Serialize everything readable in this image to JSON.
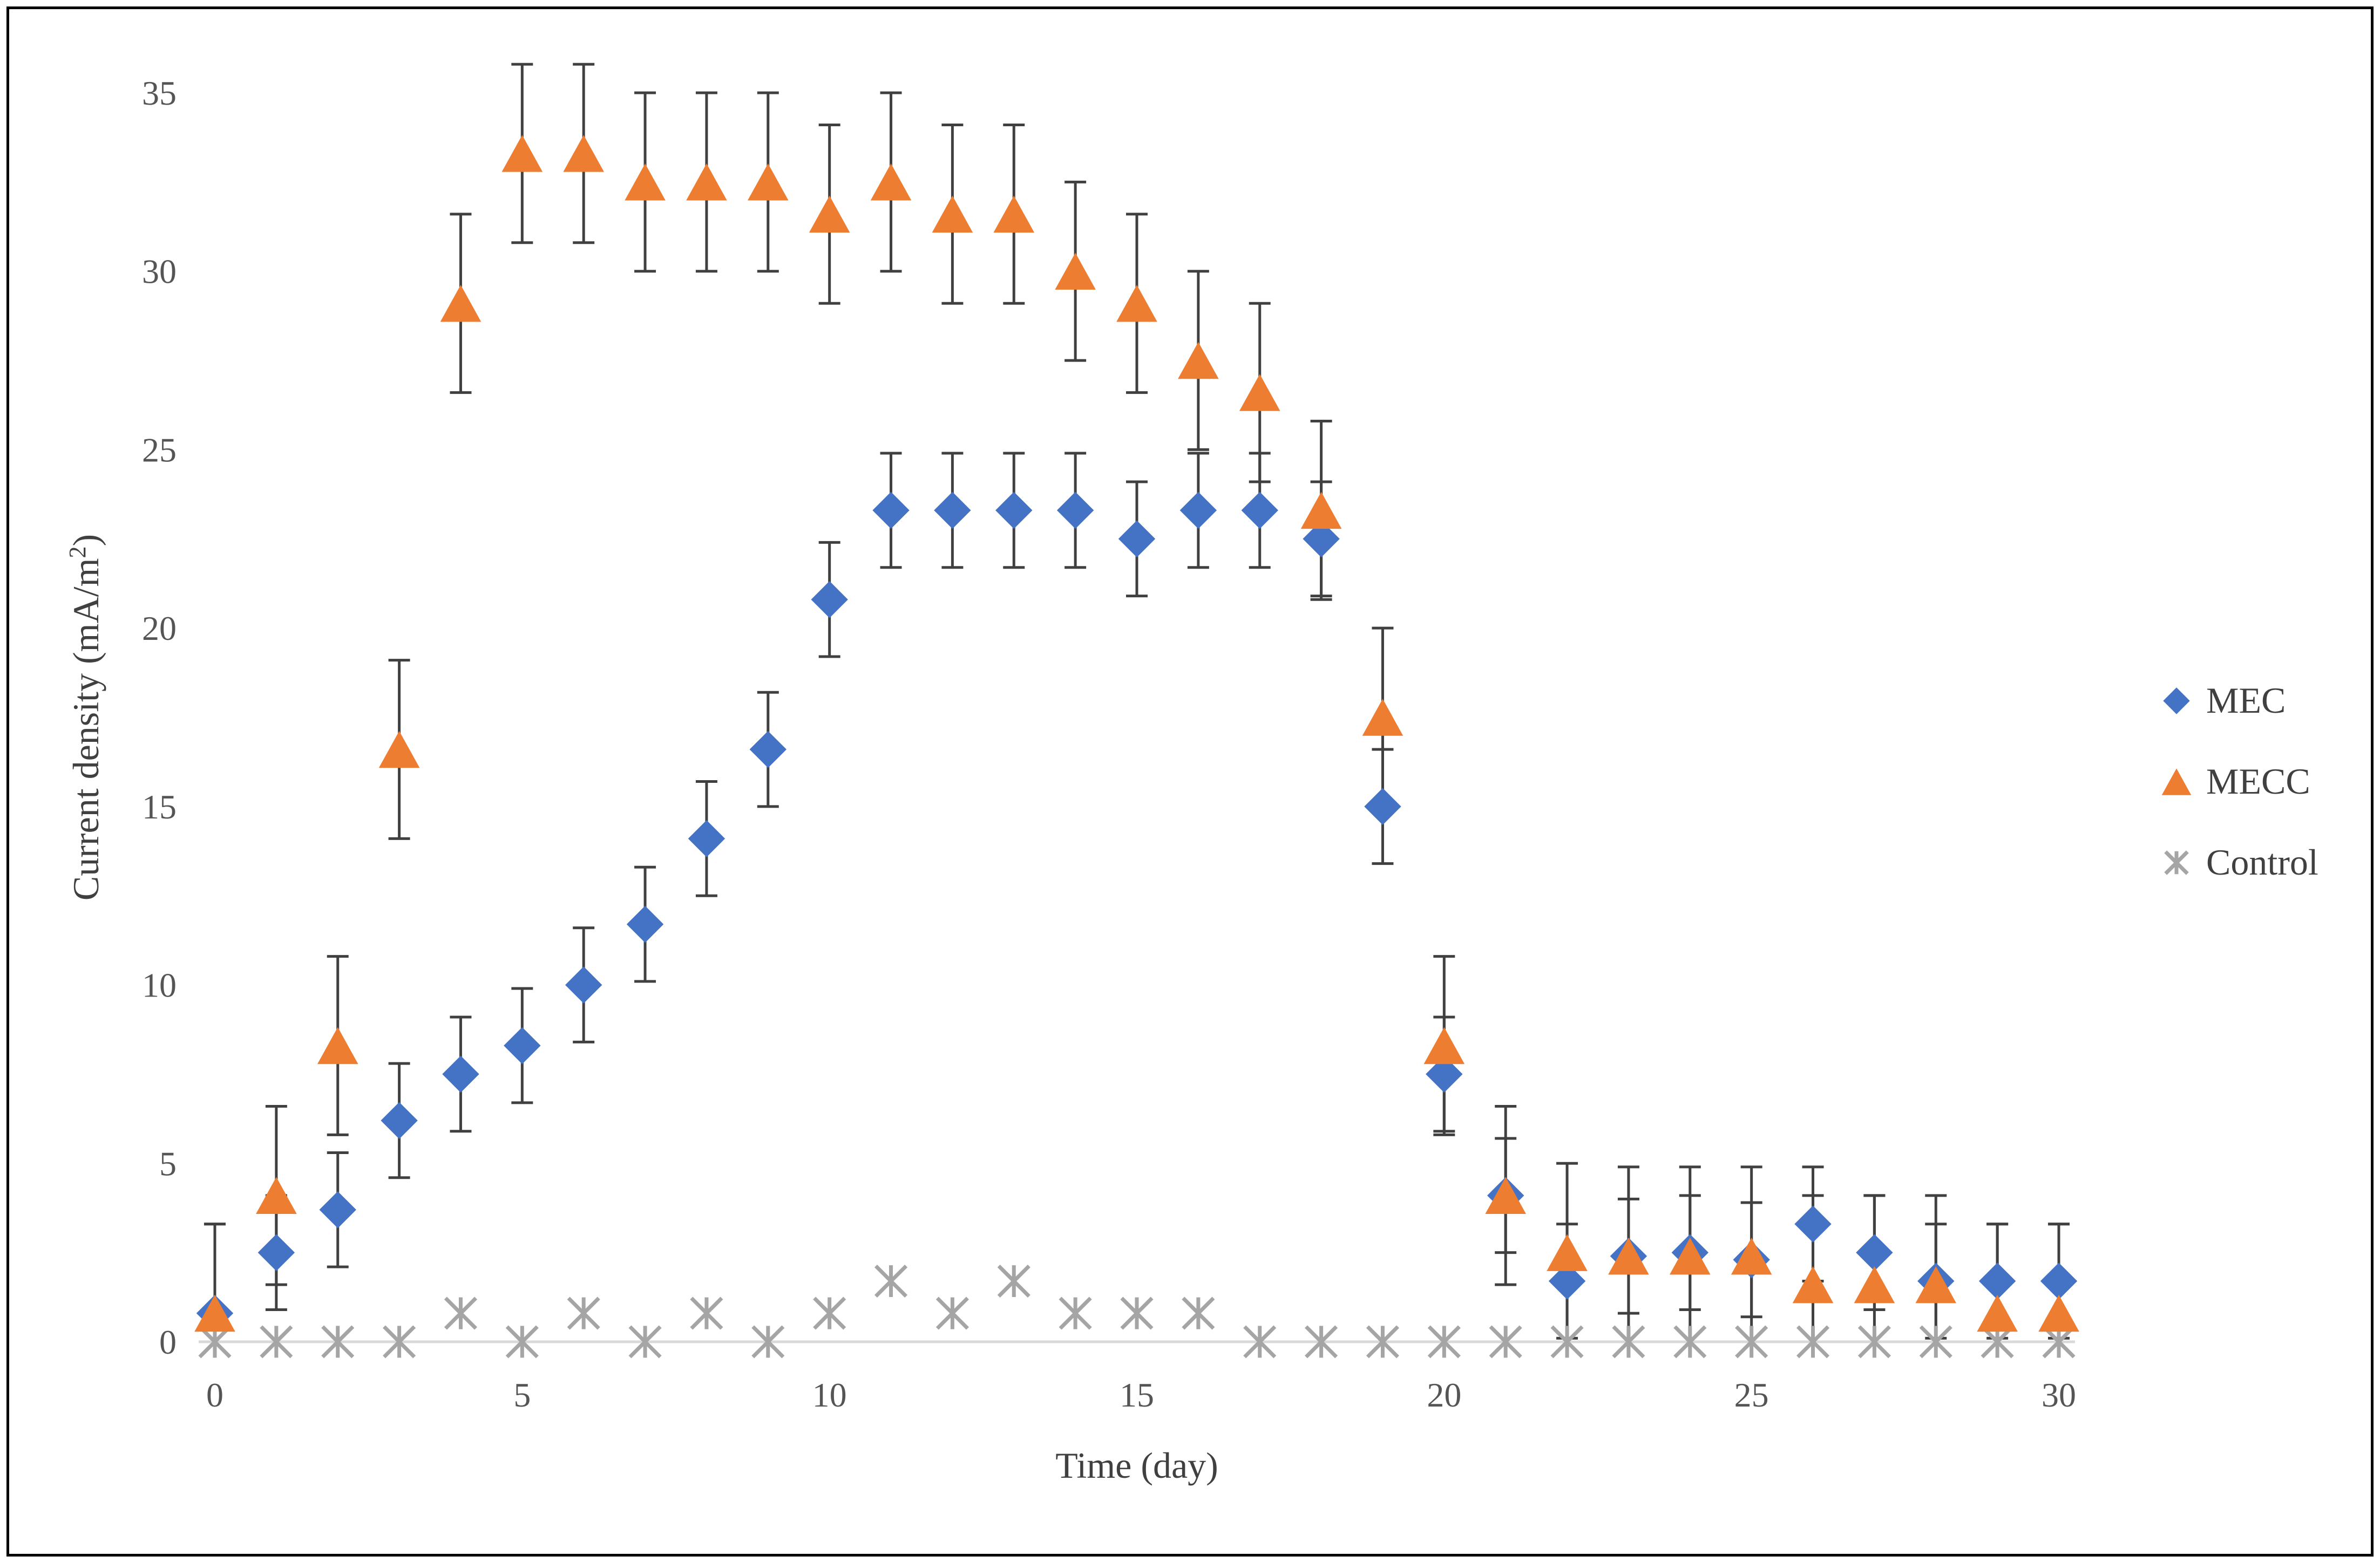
{
  "chart_data": {
    "type": "scatter",
    "title": "",
    "xlabel": "Time (day)",
    "ylabel_main": "Current density (mA/m",
    "ylabel_sup": "2",
    "ylabel_end": ")",
    "xlim": [
      0,
      30
    ],
    "ylim": [
      0,
      35
    ],
    "xticks": [
      0,
      5,
      10,
      15,
      20,
      25,
      30
    ],
    "yticks": [
      0,
      5,
      10,
      15,
      20,
      25,
      30,
      35
    ],
    "grid": false,
    "legend_position": "right",
    "series": [
      {
        "name": "MEC",
        "marker": "diamond",
        "color": "#4472C4",
        "x": [
          0,
          1,
          2,
          3,
          4,
          5,
          6,
          7,
          8,
          9,
          10,
          11,
          12,
          13,
          14,
          15,
          16,
          17,
          18,
          19,
          20,
          21,
          22,
          23,
          24,
          25,
          26,
          27,
          28,
          29,
          30
        ],
        "y": [
          0.8,
          2.5,
          3.7,
          6.2,
          7.5,
          8.3,
          10.0,
          11.7,
          14.1,
          16.6,
          20.8,
          23.3,
          23.3,
          23.3,
          23.3,
          22.5,
          23.3,
          23.3,
          22.5,
          15.0,
          7.5,
          4.1,
          1.7,
          2.4,
          2.5,
          2.3,
          3.3,
          2.5,
          1.7,
          1.7,
          1.7
        ],
        "error": [
          2.5,
          1.6,
          1.6,
          1.6,
          1.6,
          1.6,
          1.6,
          1.6,
          1.6,
          1.6,
          1.6,
          1.6,
          1.6,
          1.6,
          1.6,
          1.6,
          1.6,
          1.6,
          1.6,
          1.6,
          1.6,
          1.6,
          1.6,
          1.6,
          1.6,
          1.6,
          1.6,
          1.6,
          1.6,
          1.6,
          1.6
        ]
      },
      {
        "name": "MECC",
        "marker": "triangle",
        "color": "#ED7D31",
        "x": [
          0,
          1,
          2,
          3,
          4,
          5,
          6,
          7,
          8,
          9,
          10,
          11,
          12,
          13,
          14,
          15,
          16,
          17,
          18,
          19,
          20,
          21,
          22,
          23,
          24,
          25,
          26,
          27,
          28,
          29,
          30
        ],
        "y": [
          0.8,
          4.1,
          8.3,
          16.6,
          29.1,
          33.3,
          33.3,
          32.5,
          32.5,
          32.5,
          31.6,
          32.5,
          31.6,
          31.6,
          30.0,
          29.1,
          27.5,
          26.6,
          23.3,
          17.5,
          8.3,
          4.1,
          2.5,
          2.4,
          2.4,
          2.4,
          1.6,
          1.6,
          1.6,
          0.8,
          0.8
        ],
        "error": [
          2.5,
          2.5,
          2.5,
          2.5,
          2.5,
          2.5,
          2.5,
          2.5,
          2.5,
          2.5,
          2.5,
          2.5,
          2.5,
          2.5,
          2.5,
          2.5,
          2.5,
          2.5,
          2.5,
          2.5,
          2.5,
          2.5,
          2.5,
          2.5,
          2.5,
          2.5,
          2.5,
          2.5,
          2.5,
          2.5,
          2.5
        ]
      },
      {
        "name": "Control",
        "marker": "asterisk",
        "color": "#A5A5A5",
        "x": [
          0,
          1,
          2,
          3,
          4,
          5,
          6,
          7,
          8,
          9,
          10,
          11,
          12,
          13,
          14,
          15,
          16,
          17,
          18,
          19,
          20,
          21,
          22,
          23,
          24,
          25,
          26,
          27,
          28,
          29,
          30
        ],
        "y": [
          0,
          0,
          0,
          0,
          0.8,
          0,
          0.8,
          0,
          0.8,
          0,
          0.8,
          1.7,
          0.8,
          1.7,
          0.8,
          0.8,
          0.8,
          0,
          0,
          0,
          0,
          0,
          0,
          0,
          0,
          0,
          0,
          0,
          0,
          0,
          0
        ]
      }
    ]
  }
}
